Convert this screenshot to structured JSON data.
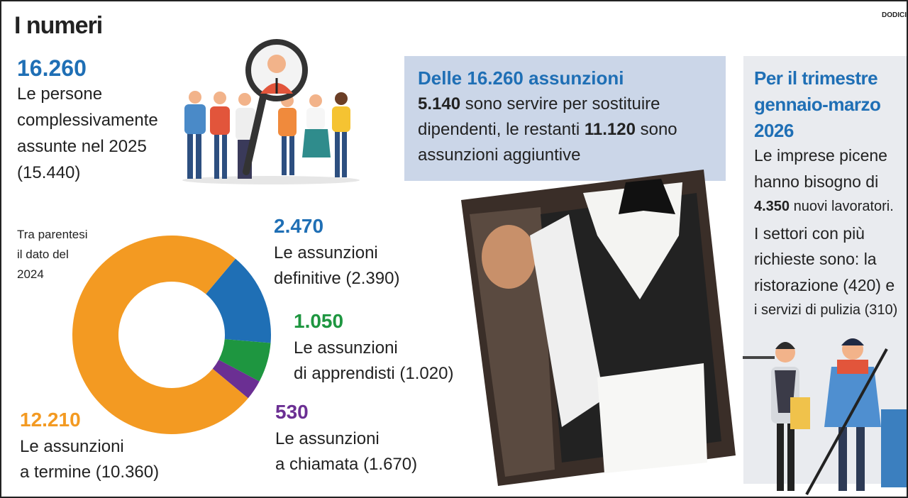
{
  "header": {
    "title": "I numeri",
    "brand": "DODICIP"
  },
  "main_stat": {
    "value": "16.260",
    "lines": [
      "Le persone",
      "complessivamente",
      "assunte nel 2025",
      "(15.440)"
    ]
  },
  "chart_data": {
    "type": "donut",
    "note": [
      "Tra parentesi",
      "il dato del",
      "2024"
    ],
    "values": [
      2470,
      1050,
      530,
      12210
    ],
    "value_labels": [
      "2.470",
      "1.050",
      "530",
      "12.210"
    ],
    "labels": [
      [
        "Le assunzioni",
        "definitive (2.390)"
      ],
      [
        "Le assunzioni",
        "di apprendisti (1.020)"
      ],
      [
        "Le assunzioni",
        "a chiamata (1.670)"
      ],
      [
        "Le assunzioni",
        "a termine (10.360)"
      ]
    ],
    "colors": [
      "#1f6fb5",
      "#1e9640",
      "#6b2f93",
      "#f39a22"
    ]
  },
  "box1": {
    "title": "Delle 16.260 assunzioni",
    "lines": [
      [
        {
          "text": "5.140",
          "bold": true
        },
        {
          "text": " sono servire per sostituire"
        }
      ],
      [
        {
          "text": "dipendenti, le restanti "
        },
        {
          "text": "11.120",
          "bold": true
        },
        {
          "text": " sono"
        }
      ],
      [
        {
          "text": "assunzioni aggiuntive"
        }
      ]
    ]
  },
  "box2": {
    "title": [
      "Per il trimestre",
      "gennaio-marzo",
      "2026"
    ],
    "lines": [
      [
        {
          "text": "Le imprese picene"
        }
      ],
      [
        {
          "text": "hanno bisogno di"
        }
      ],
      [
        {
          "text": "4.350",
          "bold": true
        },
        {
          "text": " nuovi lavoratori."
        }
      ],
      [
        {
          "text": "I settori con più"
        }
      ],
      [
        {
          "text": "richieste sono: la"
        }
      ],
      [
        {
          "text": "ristorazione (420) e"
        }
      ],
      [
        {
          "text": "i servizi di pulizia (310)"
        }
      ]
    ]
  }
}
